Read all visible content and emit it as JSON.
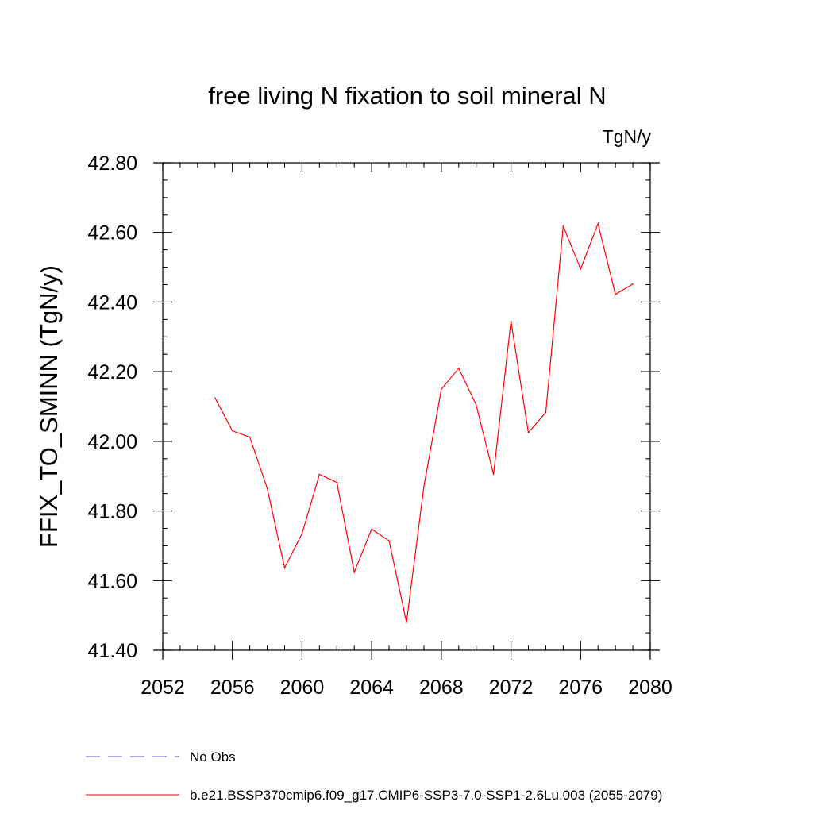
{
  "chart_data": {
    "type": "line",
    "title": "free living N fixation to soil mineral N",
    "units_label": "TgN/y",
    "ylabel": "FFIX_TO_SMINN  (TgN/y)",
    "xlabel": "",
    "xlim": [
      2052,
      2080
    ],
    "ylim": [
      41.4,
      42.8
    ],
    "x_ticks": [
      2052,
      2056,
      2060,
      2064,
      2068,
      2072,
      2076,
      2080
    ],
    "y_ticks": [
      41.4,
      41.6,
      41.8,
      42.0,
      42.2,
      42.4,
      42.6,
      42.8
    ],
    "x_tick_labels": [
      "2052",
      "2056",
      "2060",
      "2064",
      "2068",
      "2072",
      "2076",
      "2080"
    ],
    "y_tick_labels": [
      "41.40",
      "41.60",
      "41.80",
      "42.00",
      "42.20",
      "42.40",
      "42.60",
      "42.80"
    ],
    "grid": false,
    "legend_position": "bottom-left",
    "series": [
      {
        "name": "b.e21.BSSP370cmip6.f09_g17.CMIP6-SSP3-7.0-SSP1-2.6Lu.003 (2055-2079)",
        "color": "#ff0000",
        "x": [
          2055,
          2056,
          2057,
          2058,
          2059,
          2060,
          2061,
          2062,
          2063,
          2064,
          2065,
          2066,
          2067,
          2068,
          2069,
          2070,
          2071,
          2072,
          2073,
          2074,
          2075,
          2076,
          2077,
          2078,
          2079
        ],
        "y": [
          42.125,
          42.03,
          42.012,
          41.865,
          41.637,
          41.735,
          41.905,
          41.882,
          41.624,
          41.748,
          41.714,
          41.48,
          41.87,
          42.15,
          42.21,
          42.105,
          41.905,
          42.345,
          42.025,
          42.083,
          42.618,
          42.495,
          42.625,
          42.422,
          42.452
        ]
      }
    ],
    "legend": [
      {
        "label": "No Obs",
        "color": "#6a5acd",
        "style": "dashed"
      },
      {
        "label": "b.e21.BSSP370cmip6.f09_g17.CMIP6-SSP3-7.0-SSP1-2.6Lu.003 (2055-2079)",
        "color": "#ff0000",
        "style": "solid"
      }
    ]
  }
}
